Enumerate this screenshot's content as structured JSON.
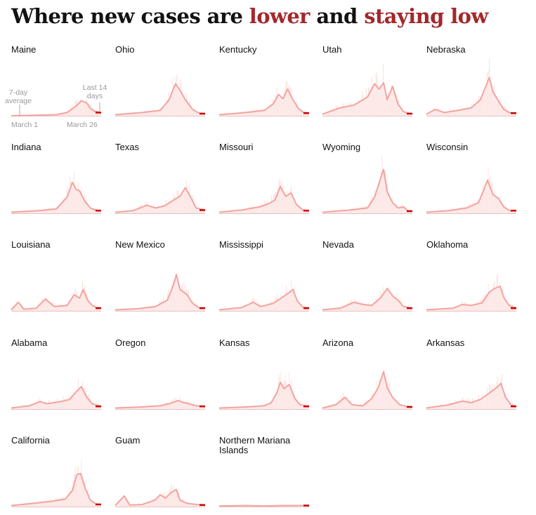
{
  "title": {
    "part1": "Where new cases are ",
    "lower": "lower",
    "part2": " and ",
    "staying_low": "staying low"
  },
  "colors": {
    "line": "#f3a4a0",
    "fill": "#fde9e7",
    "recent": "#cc0000",
    "baseline": "#999999",
    "highlight": "#a3282c"
  },
  "annotations": {
    "avg_line1": "7-day",
    "avg_line2": "average",
    "last_line1": "Last 14",
    "last_line2": "days",
    "start": "March 1",
    "end": "March 26"
  },
  "chart_data": {
    "type": "area",
    "series_note": "relative 7-day average of new cases, each panel scaled to its own peak",
    "panels": [
      {
        "state": "Maine",
        "points": [
          [
            0,
            0
          ],
          [
            0.25,
            0.01
          ],
          [
            0.5,
            0.02
          ],
          [
            0.62,
            0.06
          ],
          [
            0.72,
            0.18
          ],
          [
            0.78,
            0.28
          ],
          [
            0.84,
            0.24
          ],
          [
            0.88,
            0.14
          ],
          [
            0.93,
            0.08
          ],
          [
            1,
            0.06
          ]
        ]
      },
      {
        "state": "Ohio",
        "points": [
          [
            0,
            0.02
          ],
          [
            0.3,
            0.06
          ],
          [
            0.5,
            0.1
          ],
          [
            0.6,
            0.3
          ],
          [
            0.67,
            0.6
          ],
          [
            0.72,
            0.48
          ],
          [
            0.78,
            0.3
          ],
          [
            0.86,
            0.12
          ],
          [
            0.93,
            0.05
          ],
          [
            1,
            0.04
          ]
        ]
      },
      {
        "state": "Kentucky",
        "points": [
          [
            0,
            0.02
          ],
          [
            0.3,
            0.06
          ],
          [
            0.5,
            0.1
          ],
          [
            0.6,
            0.22
          ],
          [
            0.66,
            0.4
          ],
          [
            0.71,
            0.32
          ],
          [
            0.76,
            0.5
          ],
          [
            0.82,
            0.3
          ],
          [
            0.88,
            0.14
          ],
          [
            0.94,
            0.06
          ],
          [
            1,
            0.05
          ]
        ]
      },
      {
        "state": "Utah",
        "points": [
          [
            0,
            0.03
          ],
          [
            0.2,
            0.15
          ],
          [
            0.35,
            0.2
          ],
          [
            0.5,
            0.35
          ],
          [
            0.58,
            0.6
          ],
          [
            0.63,
            0.5
          ],
          [
            0.68,
            0.62
          ],
          [
            0.72,
            0.3
          ],
          [
            0.78,
            0.55
          ],
          [
            0.84,
            0.22
          ],
          [
            0.9,
            0.08
          ],
          [
            0.95,
            0.05
          ],
          [
            1,
            0.04
          ]
        ]
      },
      {
        "state": "Nebraska",
        "points": [
          [
            0,
            0.03
          ],
          [
            0.1,
            0.12
          ],
          [
            0.2,
            0.06
          ],
          [
            0.35,
            0.1
          ],
          [
            0.5,
            0.15
          ],
          [
            0.6,
            0.3
          ],
          [
            0.66,
            0.55
          ],
          [
            0.7,
            0.72
          ],
          [
            0.74,
            0.45
          ],
          [
            0.8,
            0.28
          ],
          [
            0.86,
            0.12
          ],
          [
            0.92,
            0.06
          ],
          [
            1,
            0.05
          ]
        ]
      },
      {
        "state": "Indiana",
        "points": [
          [
            0,
            0.02
          ],
          [
            0.3,
            0.05
          ],
          [
            0.5,
            0.08
          ],
          [
            0.62,
            0.3
          ],
          [
            0.68,
            0.58
          ],
          [
            0.72,
            0.45
          ],
          [
            0.76,
            0.42
          ],
          [
            0.82,
            0.22
          ],
          [
            0.88,
            0.1
          ],
          [
            0.94,
            0.06
          ],
          [
            1,
            0.05
          ]
        ]
      },
      {
        "state": "Texas",
        "points": [
          [
            0,
            0.02
          ],
          [
            0.2,
            0.05
          ],
          [
            0.35,
            0.15
          ],
          [
            0.45,
            0.1
          ],
          [
            0.55,
            0.14
          ],
          [
            0.65,
            0.25
          ],
          [
            0.72,
            0.32
          ],
          [
            0.78,
            0.48
          ],
          [
            0.84,
            0.3
          ],
          [
            0.9,
            0.1
          ],
          [
            1,
            0.06
          ]
        ]
      },
      {
        "state": "Missouri",
        "points": [
          [
            0,
            0.02
          ],
          [
            0.25,
            0.06
          ],
          [
            0.45,
            0.12
          ],
          [
            0.55,
            0.18
          ],
          [
            0.62,
            0.25
          ],
          [
            0.68,
            0.5
          ],
          [
            0.74,
            0.32
          ],
          [
            0.8,
            0.38
          ],
          [
            0.86,
            0.16
          ],
          [
            0.93,
            0.06
          ],
          [
            1,
            0.05
          ]
        ]
      },
      {
        "state": "Wyoming",
        "points": [
          [
            0,
            0.02
          ],
          [
            0.3,
            0.06
          ],
          [
            0.5,
            0.1
          ],
          [
            0.58,
            0.3
          ],
          [
            0.64,
            0.62
          ],
          [
            0.68,
            0.82
          ],
          [
            0.72,
            0.4
          ],
          [
            0.78,
            0.2
          ],
          [
            0.84,
            0.1
          ],
          [
            0.9,
            0.12
          ],
          [
            0.95,
            0.05
          ],
          [
            1,
            0.04
          ]
        ]
      },
      {
        "state": "Wisconsin",
        "points": [
          [
            0,
            0.02
          ],
          [
            0.25,
            0.05
          ],
          [
            0.45,
            0.1
          ],
          [
            0.58,
            0.2
          ],
          [
            0.64,
            0.45
          ],
          [
            0.68,
            0.62
          ],
          [
            0.74,
            0.35
          ],
          [
            0.8,
            0.28
          ],
          [
            0.86,
            0.12
          ],
          [
            0.93,
            0.05
          ],
          [
            1,
            0.05
          ]
        ]
      },
      {
        "state": "Louisiana",
        "points": [
          [
            0,
            0.02
          ],
          [
            0.08,
            0.16
          ],
          [
            0.14,
            0.03
          ],
          [
            0.28,
            0.05
          ],
          [
            0.38,
            0.22
          ],
          [
            0.48,
            0.08
          ],
          [
            0.62,
            0.1
          ],
          [
            0.7,
            0.3
          ],
          [
            0.76,
            0.24
          ],
          [
            0.8,
            0.4
          ],
          [
            0.85,
            0.2
          ],
          [
            0.9,
            0.1
          ],
          [
            0.95,
            0.06
          ],
          [
            1,
            0.05
          ]
        ]
      },
      {
        "state": "New Mexico",
        "points": [
          [
            0,
            0.02
          ],
          [
            0.25,
            0.04
          ],
          [
            0.45,
            0.08
          ],
          [
            0.58,
            0.2
          ],
          [
            0.64,
            0.45
          ],
          [
            0.68,
            0.68
          ],
          [
            0.72,
            0.4
          ],
          [
            0.8,
            0.3
          ],
          [
            0.86,
            0.14
          ],
          [
            0.93,
            0.06
          ],
          [
            1,
            0.05
          ]
        ]
      },
      {
        "state": "Mississippi",
        "points": [
          [
            0,
            0.02
          ],
          [
            0.25,
            0.06
          ],
          [
            0.38,
            0.16
          ],
          [
            0.46,
            0.08
          ],
          [
            0.6,
            0.14
          ],
          [
            0.7,
            0.25
          ],
          [
            0.76,
            0.32
          ],
          [
            0.82,
            0.4
          ],
          [
            0.87,
            0.18
          ],
          [
            0.93,
            0.07
          ],
          [
            1,
            0.05
          ]
        ]
      },
      {
        "state": "Nevada",
        "points": [
          [
            0,
            0.02
          ],
          [
            0.2,
            0.05
          ],
          [
            0.35,
            0.16
          ],
          [
            0.45,
            0.12
          ],
          [
            0.55,
            0.1
          ],
          [
            0.65,
            0.25
          ],
          [
            0.72,
            0.42
          ],
          [
            0.78,
            0.28
          ],
          [
            0.84,
            0.2
          ],
          [
            0.9,
            0.08
          ],
          [
            1,
            0.05
          ]
        ]
      },
      {
        "state": "Oklahoma",
        "points": [
          [
            0,
            0.02
          ],
          [
            0.3,
            0.05
          ],
          [
            0.4,
            0.12
          ],
          [
            0.5,
            0.1
          ],
          [
            0.62,
            0.15
          ],
          [
            0.7,
            0.35
          ],
          [
            0.76,
            0.42
          ],
          [
            0.82,
            0.46
          ],
          [
            0.86,
            0.25
          ],
          [
            0.92,
            0.1
          ],
          [
            1,
            0.05
          ]
        ]
      },
      {
        "state": "Alabama",
        "points": [
          [
            0,
            0.02
          ],
          [
            0.2,
            0.06
          ],
          [
            0.32,
            0.14
          ],
          [
            0.4,
            0.1
          ],
          [
            0.55,
            0.14
          ],
          [
            0.65,
            0.18
          ],
          [
            0.72,
            0.32
          ],
          [
            0.78,
            0.42
          ],
          [
            0.84,
            0.22
          ],
          [
            0.9,
            0.1
          ],
          [
            1,
            0.05
          ]
        ]
      },
      {
        "state": "Oregon",
        "points": [
          [
            0,
            0.02
          ],
          [
            0.3,
            0.04
          ],
          [
            0.5,
            0.06
          ],
          [
            0.6,
            0.1
          ],
          [
            0.7,
            0.16
          ],
          [
            0.76,
            0.12
          ],
          [
            0.82,
            0.1
          ],
          [
            0.9,
            0.06
          ],
          [
            1,
            0.05
          ]
        ]
      },
      {
        "state": "Kansas",
        "points": [
          [
            0,
            0.02
          ],
          [
            0.3,
            0.04
          ],
          [
            0.5,
            0.06
          ],
          [
            0.58,
            0.12
          ],
          [
            0.64,
            0.3
          ],
          [
            0.68,
            0.5
          ],
          [
            0.72,
            0.38
          ],
          [
            0.78,
            0.46
          ],
          [
            0.84,
            0.2
          ],
          [
            0.9,
            0.08
          ],
          [
            1,
            0.05
          ]
        ]
      },
      {
        "state": "Arizona",
        "points": [
          [
            0,
            0.02
          ],
          [
            0.15,
            0.08
          ],
          [
            0.25,
            0.22
          ],
          [
            0.33,
            0.08
          ],
          [
            0.45,
            0.06
          ],
          [
            0.55,
            0.2
          ],
          [
            0.62,
            0.4
          ],
          [
            0.68,
            0.7
          ],
          [
            0.72,
            0.4
          ],
          [
            0.78,
            0.22
          ],
          [
            0.86,
            0.08
          ],
          [
            0.93,
            0.05
          ],
          [
            1,
            0.04
          ]
        ]
      },
      {
        "state": "Arkansas",
        "points": [
          [
            0,
            0.02
          ],
          [
            0.25,
            0.08
          ],
          [
            0.4,
            0.15
          ],
          [
            0.5,
            0.12
          ],
          [
            0.6,
            0.18
          ],
          [
            0.7,
            0.3
          ],
          [
            0.78,
            0.4
          ],
          [
            0.83,
            0.48
          ],
          [
            0.88,
            0.22
          ],
          [
            0.94,
            0.08
          ],
          [
            1,
            0.05
          ]
        ]
      },
      {
        "state": "California",
        "points": [
          [
            0,
            0.02
          ],
          [
            0.25,
            0.06
          ],
          [
            0.45,
            0.1
          ],
          [
            0.6,
            0.14
          ],
          [
            0.68,
            0.3
          ],
          [
            0.73,
            0.6
          ],
          [
            0.77,
            0.62
          ],
          [
            0.82,
            0.35
          ],
          [
            0.88,
            0.12
          ],
          [
            0.94,
            0.05
          ],
          [
            1,
            0.04
          ]
        ]
      },
      {
        "state": "Guam",
        "points": [
          [
            0,
            0.02
          ],
          [
            0.1,
            0.2
          ],
          [
            0.16,
            0.03
          ],
          [
            0.3,
            0.04
          ],
          [
            0.44,
            0.12
          ],
          [
            0.5,
            0.22
          ],
          [
            0.56,
            0.16
          ],
          [
            0.62,
            0.26
          ],
          [
            0.68,
            0.32
          ],
          [
            0.72,
            0.12
          ],
          [
            0.8,
            0.06
          ],
          [
            0.9,
            0.04
          ],
          [
            1,
            0.03
          ]
        ]
      },
      {
        "state": "Northern Mariana Islands",
        "points": [
          [
            0,
            0.01
          ],
          [
            0.3,
            0.02
          ],
          [
            0.5,
            0.01
          ],
          [
            0.7,
            0.02
          ],
          [
            0.9,
            0.02
          ],
          [
            1,
            0.02
          ]
        ]
      }
    ]
  }
}
